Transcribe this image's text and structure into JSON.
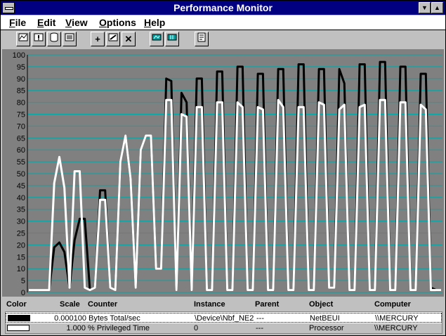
{
  "window": {
    "title": "Performance Monitor"
  },
  "menu": [
    {
      "key": "F",
      "rest": "ile"
    },
    {
      "key": "E",
      "rest": "dit"
    },
    {
      "key": "V",
      "rest": "iew"
    },
    {
      "key": "O",
      "rest": "ptions"
    },
    {
      "key": "H",
      "rest": "elp"
    }
  ],
  "toolbar": {
    "add_symbol": "+",
    "delete_symbol": "✕"
  },
  "chart_data": {
    "type": "line",
    "ylim": [
      0,
      100
    ],
    "yticks": [
      0,
      5,
      10,
      15,
      20,
      25,
      30,
      35,
      40,
      45,
      50,
      55,
      60,
      65,
      70,
      75,
      80,
      85,
      90,
      95,
      100
    ],
    "grid": true,
    "series": [
      {
        "color": "#000000",
        "values": [
          1,
          1,
          1,
          1,
          1,
          19,
          21,
          17,
          2,
          22,
          31,
          31,
          1,
          2,
          43,
          43,
          2,
          1,
          55,
          66,
          48,
          2,
          60,
          66,
          66,
          10,
          10,
          90,
          89,
          1,
          84,
          80,
          1,
          90,
          90,
          1,
          1,
          93,
          93,
          1,
          1,
          95,
          95,
          1,
          1,
          92,
          92,
          1,
          1,
          94,
          94,
          1,
          1,
          96,
          96,
          1,
          1,
          94,
          94,
          2,
          2,
          94,
          88,
          1,
          1,
          96,
          96,
          1,
          1,
          97,
          97,
          1,
          1,
          95,
          95,
          1,
          1,
          92,
          92,
          2,
          1,
          1
        ]
      },
      {
        "color": "#ffffff",
        "values": [
          1,
          1,
          1,
          1,
          1,
          46,
          57,
          44,
          2,
          51,
          51,
          2,
          1,
          2,
          39,
          39,
          2,
          1,
          55,
          66,
          48,
          2,
          60,
          66,
          66,
          10,
          10,
          81,
          81,
          1,
          75,
          74,
          1,
          78,
          78,
          1,
          1,
          80,
          80,
          1,
          1,
          80,
          78,
          1,
          1,
          78,
          77,
          1,
          1,
          81,
          78,
          1,
          1,
          78,
          78,
          1,
          1,
          80,
          79,
          2,
          2,
          77,
          79,
          1,
          1,
          78,
          79,
          1,
          1,
          81,
          81,
          1,
          1,
          80,
          80,
          1,
          1,
          79,
          77,
          1,
          1,
          1
        ]
      }
    ]
  },
  "legend": {
    "headers": {
      "color": "Color",
      "scale": "Scale",
      "counter": "Counter",
      "instance": "Instance",
      "parent": "Parent",
      "object": "Object",
      "computer": "Computer"
    },
    "rows": [
      {
        "color": "#000000",
        "scale": "0.000100",
        "counter": "Bytes Total/sec",
        "instance": "\\Device\\Nbf_NE2",
        "parent": "---",
        "object": "NetBEUI",
        "computer": "\\\\MERCURY"
      },
      {
        "color": "#ffffff",
        "scale": "1.000",
        "counter": "% Privileged Time",
        "instance": "0",
        "parent": "---",
        "object": "Processor",
        "computer": "\\\\MERCURY"
      }
    ]
  }
}
